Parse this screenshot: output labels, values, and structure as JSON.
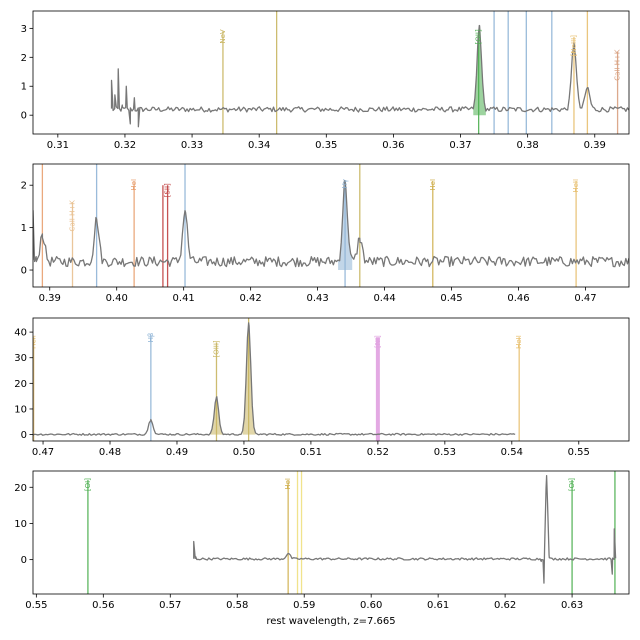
{
  "chart_data": {
    "type": "line",
    "xlabel": "rest wavelength, z=7.665",
    "panels": [
      {
        "xlim": [
          0.3063,
          0.3951
        ],
        "ylim": [
          -0.65,
          3.6
        ],
        "xticks": [
          0.31,
          0.32,
          0.33,
          0.34,
          0.35,
          0.36,
          0.37,
          0.38,
          0.39
        ],
        "xtick_labels": [
          "0.31",
          "0.32",
          "0.33",
          "0.34",
          "0.35",
          "0.36",
          "0.37",
          "0.38",
          "0.39"
        ],
        "yticks": [
          0,
          1,
          2,
          3
        ],
        "ytick_labels": [
          "0",
          "1",
          "2",
          "3"
        ],
        "spectrum_start": 0.318,
        "spectrum_end": 0.3951,
        "spectrum_points": 330,
        "spectrum_baseline": 0.2,
        "spectrum_noise": 0.09,
        "start_spikes": [
          {
            "x": 0.318,
            "y": 1.2
          },
          {
            "x": 0.3185,
            "y": 0.7
          },
          {
            "x": 0.319,
            "y": 1.6
          },
          {
            "x": 0.3196,
            "y": 0.35
          },
          {
            "x": 0.3202,
            "y": 1.0
          },
          {
            "x": 0.3208,
            "y": -0.3
          },
          {
            "x": 0.3214,
            "y": 0.6
          },
          {
            "x": 0.322,
            "y": -0.4
          },
          {
            "x": 0.3226,
            "y": 0.2
          }
        ],
        "peaks": [
          {
            "x": 0.3728,
            "height": 2.9,
            "width": 0.00032,
            "fill": "#4caf50"
          },
          {
            "x": 0.3869,
            "height": 2.3,
            "width": 0.00035,
            "fill": null
          },
          {
            "x": 0.3889,
            "height": 0.75,
            "width": 0.00035,
            "fill": null
          }
        ],
        "lines": [
          {
            "x": 0.3346,
            "label": "NeV",
            "color": "#c8b560",
            "top": 2.9
          },
          {
            "x": 0.3426,
            "label": "",
            "color": "#c8b560",
            "top": 3.6
          },
          {
            "x": 0.3727,
            "label": "[OII]",
            "color": "#4caf50",
            "top": 2.9
          },
          {
            "x": 0.375,
            "label": "",
            "color": "#8fb4d6",
            "top": 3.6
          },
          {
            "x": 0.3771,
            "label": "",
            "color": "#8fb4d6",
            "top": 3.6
          },
          {
            "x": 0.3798,
            "label": "",
            "color": "#8fb4d6",
            "top": 3.6
          },
          {
            "x": 0.3836,
            "label": "",
            "color": "#8fb4d6",
            "top": 3.6
          },
          {
            "x": 0.3869,
            "label": "[NeIII]",
            "color": "#e8c070",
            "top": 2.7
          },
          {
            "x": 0.3889,
            "label": "",
            "color": "#e8c070",
            "top": 3.6
          },
          {
            "x": 0.3934,
            "label": "CaII H+K",
            "color": "#d8a080",
            "top": 2.2
          }
        ]
      },
      {
        "xlim": [
          0.3875,
          0.4765
        ],
        "ylim": [
          -0.4,
          2.5
        ],
        "xticks": [
          0.39,
          0.4,
          0.41,
          0.42,
          0.43,
          0.44,
          0.45,
          0.46,
          0.47
        ],
        "xtick_labels": [
          "0.39",
          "0.40",
          "0.41",
          "0.42",
          "0.43",
          "0.44",
          "0.45",
          "0.46",
          "0.47"
        ],
        "yticks": [
          0,
          1,
          2
        ],
        "ytick_labels": [
          "0",
          "1",
          "2"
        ],
        "spectrum_start": 0.3875,
        "spectrum_end": 0.4765,
        "spectrum_points": 380,
        "spectrum_baseline": 0.2,
        "spectrum_noise": 0.12,
        "start_spikes": [
          {
            "x": 0.3875,
            "y": 1.4
          },
          {
            "x": 0.388,
            "y": 0.2
          }
        ],
        "peaks": [
          {
            "x": 0.3889,
            "height": 0.65,
            "width": 0.00035,
            "fill": null
          },
          {
            "x": 0.397,
            "height": 1.0,
            "width": 0.00035,
            "fill": null
          },
          {
            "x": 0.4102,
            "height": 1.2,
            "width": 0.00035,
            "fill": null
          },
          {
            "x": 0.4341,
            "height": 1.9,
            "width": 0.00035,
            "fill": "#8fb4d6"
          },
          {
            "x": 0.4363,
            "height": 0.55,
            "width": 0.00035,
            "fill": null
          }
        ],
        "lines": [
          {
            "x": 0.3889,
            "label": "",
            "color": "#e8a070",
            "top": 2.5
          },
          {
            "x": 0.3934,
            "label": "CaII H+K",
            "color": "#e8c090",
            "top": 1.6
          },
          {
            "x": 0.397,
            "label": "",
            "color": "#8fb4d6",
            "top": 2.5
          },
          {
            "x": 0.4026,
            "label": "HeI",
            "color": "#e8a070",
            "top": 2.1
          },
          {
            "x": 0.4069,
            "label": "",
            "color": "#c04040",
            "top": 2.0
          },
          {
            "x": 0.4076,
            "label": "[SII]",
            "color": "#c04040",
            "top": 2.0
          },
          {
            "x": 0.4102,
            "label": "",
            "color": "#8fb4d6",
            "top": 2.5
          },
          {
            "x": 0.4341,
            "label": "Hγ",
            "color": "#8fb4d6",
            "top": 2.1
          },
          {
            "x": 0.4363,
            "label": "",
            "color": "#c8b560",
            "top": 2.5
          },
          {
            "x": 0.4472,
            "label": "HeI",
            "color": "#d0b050",
            "top": 2.1
          },
          {
            "x": 0.4686,
            "label": "HeII",
            "color": "#e8c070",
            "top": 2.1
          }
        ]
      },
      {
        "xlim": [
          0.4685,
          0.5575
        ],
        "ylim": [
          -2.5,
          45.5
        ],
        "xticks": [
          0.47,
          0.48,
          0.49,
          0.5,
          0.51,
          0.52,
          0.53,
          0.54,
          0.55
        ],
        "xtick_labels": [
          "0.47",
          "0.48",
          "0.49",
          "0.50",
          "0.51",
          "0.52",
          "0.53",
          "0.54",
          "0.55"
        ],
        "yticks": [
          0,
          10,
          20,
          30,
          40
        ],
        "ytick_labels": [
          "0",
          "10",
          "20",
          "30",
          "40"
        ],
        "spectrum_start": 0.4685,
        "spectrum_end": 0.5405,
        "spectrum_points": 300,
        "spectrum_baseline": 0.1,
        "spectrum_noise": 0.35,
        "start_spikes": [],
        "peaks": [
          {
            "x": 0.4861,
            "height": 5.8,
            "width": 0.00033,
            "fill": null
          },
          {
            "x": 0.4959,
            "height": 14.5,
            "width": 0.00033,
            "fill": "#c8b560"
          },
          {
            "x": 0.5007,
            "height": 43.5,
            "width": 0.00033,
            "fill": "#c8b560"
          }
        ],
        "lines": [
          {
            "x": 0.4686,
            "label": "HeII",
            "color": "#e8c070",
            "top": 38
          },
          {
            "x": 0.4861,
            "label": "Hβ",
            "color": "#8fb4d6",
            "top": 39
          },
          {
            "x": 0.4959,
            "label": "[OIII]",
            "color": "#c8b560",
            "top": 36
          },
          {
            "x": 0.5007,
            "label": "",
            "color": "#c8b560",
            "top": 45.5
          },
          {
            "x": 0.52,
            "label": "[NI]",
            "color": "#e0a0e0",
            "top": 38
          },
          {
            "x": 0.5411,
            "label": "HeII",
            "color": "#e8c070",
            "top": 38
          }
        ]
      },
      {
        "xlim": [
          0.5495,
          0.6385
        ],
        "ylim": [
          -9.5,
          24.5
        ],
        "xticks": [
          0.55,
          0.56,
          0.57,
          0.58,
          0.59,
          0.6,
          0.61,
          0.62,
          0.63
        ],
        "xtick_labels": [
          "0.55",
          "0.56",
          "0.57",
          "0.58",
          "0.59",
          "0.60",
          "0.61",
          "0.62",
          "0.63"
        ],
        "yticks": [
          0,
          10,
          20
        ],
        "ytick_labels": [
          "0",
          "10",
          "20"
        ],
        "spectrum_start": 0.5735,
        "spectrum_end": 0.6365,
        "spectrum_points": 280,
        "spectrum_baseline": 0.2,
        "spectrum_noise": 0.3,
        "start_spikes": [
          {
            "x": 0.5735,
            "y": 5.0
          },
          {
            "x": 0.5738,
            "y": 0.8
          }
        ],
        "peaks": [
          {
            "x": 0.5876,
            "height": 1.5,
            "width": 0.0003,
            "fill": null
          },
          {
            "x": 0.6262,
            "height": 23.0,
            "width": 0.00015,
            "fill": null
          }
        ],
        "extra_points": [
          {
            "x": 0.6254,
            "y": -0.5
          },
          {
            "x": 0.6258,
            "y": -6.5
          },
          {
            "x": 0.6262,
            "y": 23.0
          },
          {
            "x": 0.6266,
            "y": 0.5
          },
          {
            "x": 0.636,
            "y": -4.0
          },
          {
            "x": 0.6363,
            "y": 8.5
          }
        ],
        "lines": [
          {
            "x": 0.5577,
            "label": "[OI]",
            "color": "#4caf50",
            "top": 22
          },
          {
            "x": 0.5876,
            "label": "HeI",
            "color": "#d0b050",
            "top": 22
          },
          {
            "x": 0.589,
            "label": "",
            "color": "#f0e080",
            "top": 24.5
          },
          {
            "x": 0.5896,
            "label": "",
            "color": "#f0e080",
            "top": 24.5
          },
          {
            "x": 0.63,
            "label": "[OI]",
            "color": "#4caf50",
            "top": 22
          },
          {
            "x": 0.6364,
            "label": "",
            "color": "#4caf50",
            "top": 24.5
          }
        ]
      }
    ]
  }
}
